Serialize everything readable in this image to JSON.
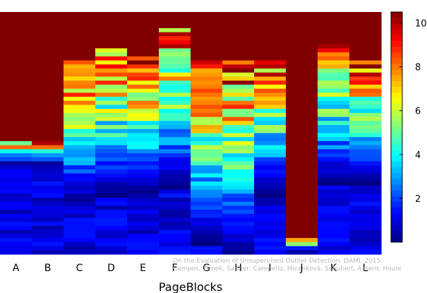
{
  "chart_data": {
    "type": "heatmap",
    "xlabel": "PageBlocks",
    "x_categories": [
      "A",
      "B",
      "C",
      "D",
      "E",
      "F",
      "G",
      "H",
      "I",
      "J",
      "K",
      "L"
    ],
    "colorbar": {
      "ticks": [
        2,
        4,
        6,
        8,
        10
      ],
      "range": [
        0,
        10.5
      ],
      "colormap": "jet"
    },
    "colors": {
      "background_high": "#7f0000",
      "low": "#00007f"
    },
    "watermark": [
      "On the Evaluation of Unsupervised Outlier Detection. DAMI, 2015.",
      "Campos, Zimek, Sander, Campello, Micenková, Schubert, Assent, Houle"
    ]
  }
}
